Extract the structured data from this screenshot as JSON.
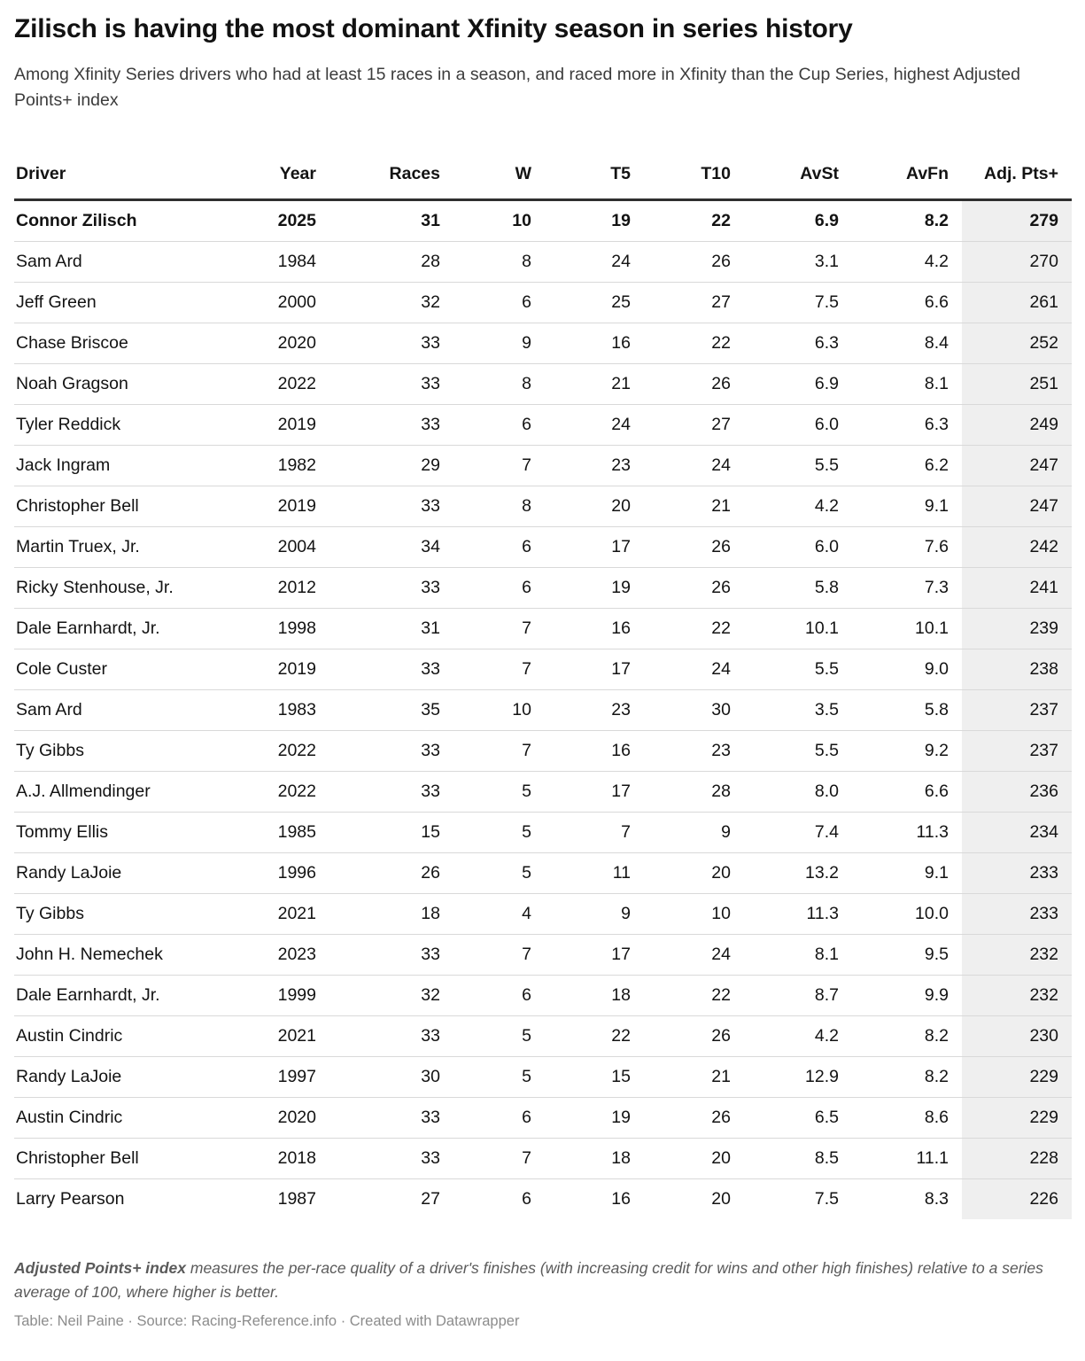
{
  "chart_data": {
    "type": "table",
    "title": "Zilisch is having the most dominant Xfinity season in series history",
    "subtitle": "Among Xfinity Series drivers who had at least 15 races in a season, and raced more in Xfinity than the Cup Series, highest Adjusted Points+ index",
    "columns": [
      "Driver",
      "Year",
      "Races",
      "W",
      "T5",
      "T10",
      "AvSt",
      "AvFn",
      "Adj.\nPts+"
    ],
    "column_keys": [
      "driver",
      "year",
      "races",
      "w",
      "t5",
      "t10",
      "avst",
      "avfn",
      "adj-pts"
    ],
    "highlight_row": 0,
    "shaded_column": 8,
    "rows": [
      [
        "Connor Zilisch",
        "2025",
        "31",
        "10",
        "19",
        "22",
        "6.9",
        "8.2",
        "279"
      ],
      [
        "Sam Ard",
        "1984",
        "28",
        "8",
        "24",
        "26",
        "3.1",
        "4.2",
        "270"
      ],
      [
        "Jeff Green",
        "2000",
        "32",
        "6",
        "25",
        "27",
        "7.5",
        "6.6",
        "261"
      ],
      [
        "Chase Briscoe",
        "2020",
        "33",
        "9",
        "16",
        "22",
        "6.3",
        "8.4",
        "252"
      ],
      [
        "Noah Gragson",
        "2022",
        "33",
        "8",
        "21",
        "26",
        "6.9",
        "8.1",
        "251"
      ],
      [
        "Tyler Reddick",
        "2019",
        "33",
        "6",
        "24",
        "27",
        "6.0",
        "6.3",
        "249"
      ],
      [
        "Jack Ingram",
        "1982",
        "29",
        "7",
        "23",
        "24",
        "5.5",
        "6.2",
        "247"
      ],
      [
        "Christopher Bell",
        "2019",
        "33",
        "8",
        "20",
        "21",
        "4.2",
        "9.1",
        "247"
      ],
      [
        "Martin Truex, Jr.",
        "2004",
        "34",
        "6",
        "17",
        "26",
        "6.0",
        "7.6",
        "242"
      ],
      [
        "Ricky Stenhouse, Jr.",
        "2012",
        "33",
        "6",
        "19",
        "26",
        "5.8",
        "7.3",
        "241"
      ],
      [
        "Dale Earnhardt, Jr.",
        "1998",
        "31",
        "7",
        "16",
        "22",
        "10.1",
        "10.1",
        "239"
      ],
      [
        "Cole Custer",
        "2019",
        "33",
        "7",
        "17",
        "24",
        "5.5",
        "9.0",
        "238"
      ],
      [
        "Sam Ard",
        "1983",
        "35",
        "10",
        "23",
        "30",
        "3.5",
        "5.8",
        "237"
      ],
      [
        "Ty Gibbs",
        "2022",
        "33",
        "7",
        "16",
        "23",
        "5.5",
        "9.2",
        "237"
      ],
      [
        "A.J. Allmendinger",
        "2022",
        "33",
        "5",
        "17",
        "28",
        "8.0",
        "6.6",
        "236"
      ],
      [
        "Tommy Ellis",
        "1985",
        "15",
        "5",
        "7",
        "9",
        "7.4",
        "11.3",
        "234"
      ],
      [
        "Randy LaJoie",
        "1996",
        "26",
        "5",
        "11",
        "20",
        "13.2",
        "9.1",
        "233"
      ],
      [
        "Ty Gibbs",
        "2021",
        "18",
        "4",
        "9",
        "10",
        "11.3",
        "10.0",
        "233"
      ],
      [
        "John H. Nemechek",
        "2023",
        "33",
        "7",
        "17",
        "24",
        "8.1",
        "9.5",
        "232"
      ],
      [
        "Dale Earnhardt, Jr.",
        "1999",
        "32",
        "6",
        "18",
        "22",
        "8.7",
        "9.9",
        "232"
      ],
      [
        "Austin Cindric",
        "2021",
        "33",
        "5",
        "22",
        "26",
        "4.2",
        "8.2",
        "230"
      ],
      [
        "Randy LaJoie",
        "1997",
        "30",
        "5",
        "15",
        "21",
        "12.9",
        "8.2",
        "229"
      ],
      [
        "Austin Cindric",
        "2020",
        "33",
        "6",
        "19",
        "26",
        "6.5",
        "8.6",
        "229"
      ],
      [
        "Christopher Bell",
        "2018",
        "33",
        "7",
        "18",
        "20",
        "8.5",
        "11.1",
        "228"
      ],
      [
        "Larry Pearson",
        "1987",
        "27",
        "6",
        "16",
        "20",
        "7.5",
        "8.3",
        "226"
      ]
    ],
    "layout": {
      "grid": "horizontal row separators",
      "shaded_column_label": "Adj. Pts+"
    }
  },
  "footer": {
    "note_lead": "Adjusted Points+ index",
    "note_rest": " measures the per-race quality of a driver's finishes (with increasing credit for wins and other high finishes) relative to a series average of 100, where higher is better.",
    "attribution": "Table: Neil Paine · Source: Racing-Reference.info · Created with Datawrapper"
  },
  "colors": {
    "title_text": "#121212",
    "subtitle_text": "#3c3c3c",
    "table_text": "#131313",
    "header_border": "#2f2f2f",
    "row_separator": "#d9d9d9",
    "shaded_column_bg": "#efefef",
    "footnote_text": "#5a5a5a",
    "attribution_text": "#8c8c8c",
    "background": "#ffffff"
  }
}
